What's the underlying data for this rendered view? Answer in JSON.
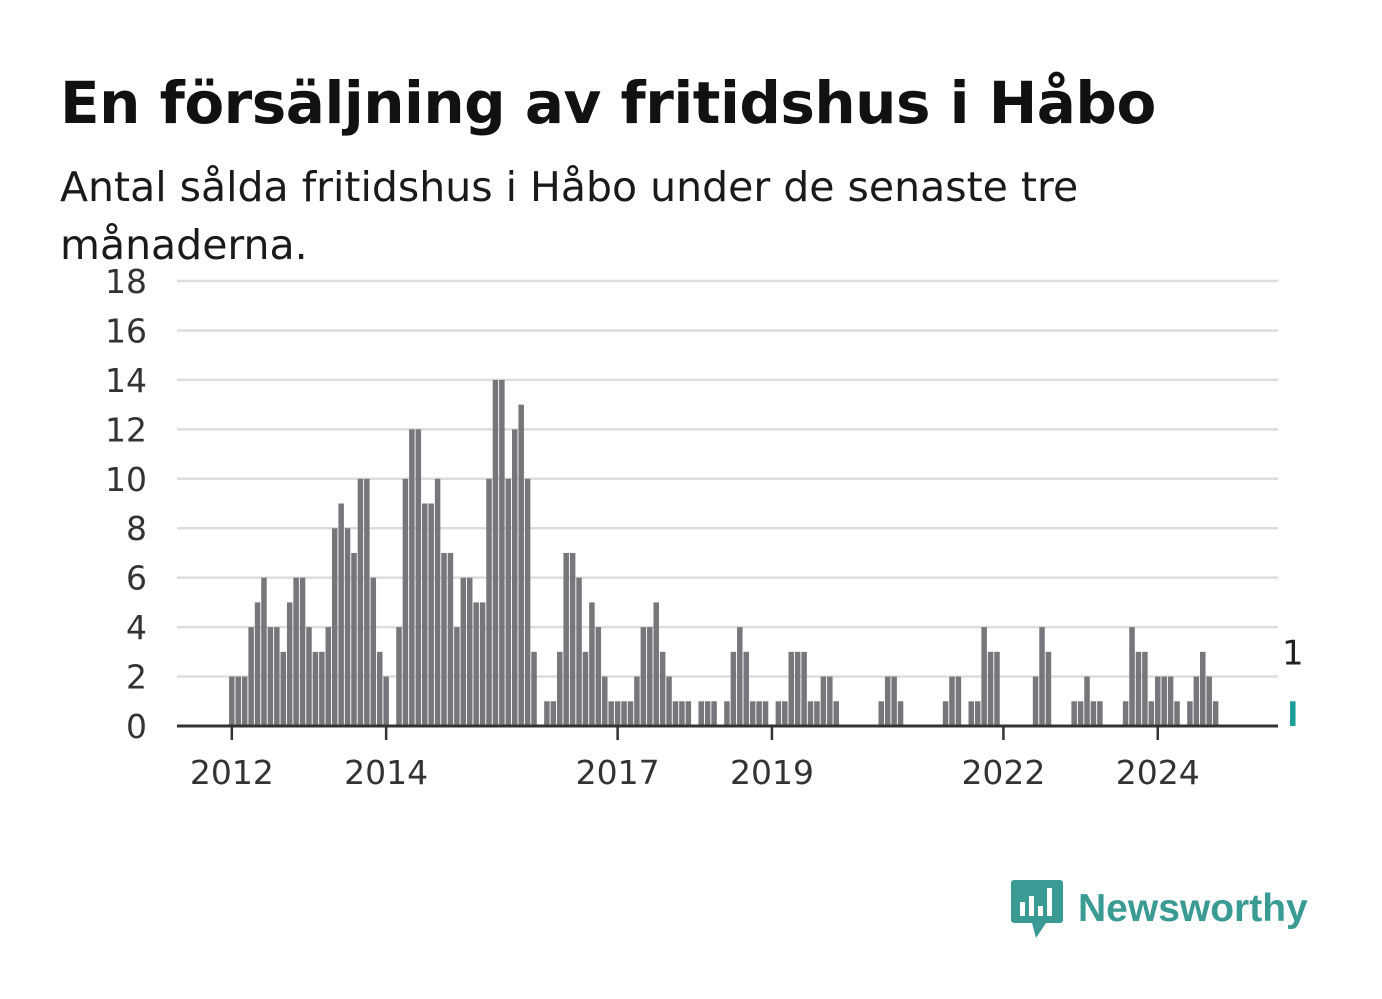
{
  "header": {
    "title": "En försäljning av fritidshus i Håbo",
    "subtitle": "Antal sålda fritidshus i Håbo under de senaste tre månaderna."
  },
  "brand": {
    "name": "Newsworthy",
    "icon": "bar-chart-speech-bubble-icon",
    "color": "#3a9a94"
  },
  "colors": {
    "bar": "#77767b",
    "highlight": "#1a9e96",
    "grid": "#dddddd",
    "axis": "#333333"
  },
  "chart_data": {
    "type": "bar",
    "ylim": [
      0,
      18
    ],
    "yticks": [
      0,
      2,
      4,
      6,
      8,
      10,
      12,
      14,
      16,
      18
    ],
    "xticks": [
      "2012",
      "2014",
      "2017",
      "2019",
      "2022",
      "2024"
    ],
    "grid": true,
    "highlight_label": "1",
    "categories": [
      "2011-07",
      "2011-08",
      "2011-09",
      "2011-10",
      "2011-11",
      "2011-12",
      "2012-01",
      "2012-02",
      "2012-03",
      "2012-04",
      "2012-05",
      "2012-06",
      "2012-07",
      "2012-08",
      "2012-09",
      "2012-10",
      "2012-11",
      "2012-12",
      "2013-01",
      "2013-02",
      "2013-03",
      "2013-04",
      "2013-05",
      "2013-06",
      "2013-07",
      "2013-08",
      "2013-09",
      "2013-10",
      "2013-11",
      "2013-12",
      "2014-01",
      "2014-02",
      "2014-03",
      "2014-04",
      "2014-05",
      "2014-06",
      "2014-07",
      "2014-08",
      "2014-09",
      "2014-10",
      "2014-11",
      "2014-12",
      "2015-01",
      "2015-02",
      "2015-03",
      "2015-04",
      "2015-05",
      "2015-06",
      "2015-07",
      "2015-08",
      "2015-09",
      "2015-10",
      "2015-11",
      "2015-12",
      "2016-01",
      "2016-02",
      "2016-03",
      "2016-04",
      "2016-05",
      "2016-06",
      "2016-07",
      "2016-08",
      "2016-09",
      "2016-10",
      "2016-11",
      "2016-12",
      "2017-01",
      "2017-02",
      "2017-03",
      "2017-04",
      "2017-05",
      "2017-06",
      "2017-07",
      "2017-08",
      "2017-09",
      "2017-10",
      "2017-11",
      "2017-12",
      "2018-01",
      "2018-02",
      "2018-03",
      "2018-04",
      "2018-05",
      "2018-06",
      "2018-07",
      "2018-08",
      "2018-09",
      "2018-10",
      "2018-11",
      "2018-12",
      "2019-01",
      "2019-02",
      "2019-03",
      "2019-04",
      "2019-05",
      "2019-06",
      "2019-07",
      "2019-08",
      "2019-09",
      "2019-10",
      "2019-11",
      "2019-12",
      "2020-01",
      "2020-02",
      "2020-03",
      "2020-04",
      "2020-05",
      "2020-06",
      "2020-07",
      "2020-08",
      "2020-09",
      "2020-10",
      "2020-11",
      "2020-12",
      "2021-01",
      "2021-02",
      "2021-03",
      "2021-04",
      "2021-05",
      "2021-06",
      "2021-07",
      "2021-08",
      "2021-09",
      "2021-10",
      "2021-11",
      "2021-12",
      "2022-01",
      "2022-02",
      "2022-03",
      "2022-04",
      "2022-05",
      "2022-06",
      "2022-07",
      "2022-08",
      "2022-09",
      "2022-10",
      "2022-11",
      "2022-12",
      "2023-01",
      "2023-02",
      "2023-03",
      "2023-04",
      "2023-05",
      "2023-06",
      "2023-07",
      "2023-08",
      "2023-09",
      "2023-10",
      "2023-11",
      "2023-12",
      "2024-01",
      "2024-02",
      "2024-03",
      "2024-04",
      "2024-05",
      "2024-06",
      "2024-07",
      "2024-08",
      "2024-09",
      "2024-10",
      "2024-11",
      "2024-12",
      "2025-01",
      "2025-02",
      "2025-03",
      "2025-04",
      "2025-05",
      "2025-06",
      "2025-07",
      "2025-08",
      "2025-09",
      "2025-10"
    ],
    "values": [
      0,
      0,
      0,
      0,
      0,
      0,
      2,
      2,
      2,
      4,
      5,
      6,
      4,
      4,
      3,
      5,
      6,
      6,
      4,
      3,
      3,
      4,
      8,
      9,
      8,
      7,
      10,
      10,
      6,
      3,
      2,
      0,
      4,
      10,
      12,
      12,
      9,
      9,
      10,
      7,
      7,
      4,
      6,
      6,
      5,
      5,
      10,
      14,
      14,
      10,
      12,
      13,
      10,
      3,
      0,
      1,
      1,
      3,
      7,
      7,
      6,
      3,
      5,
      4,
      2,
      1,
      1,
      1,
      1,
      2,
      4,
      4,
      5,
      3,
      2,
      1,
      1,
      1,
      0,
      1,
      1,
      1,
      0,
      1,
      3,
      4,
      3,
      1,
      1,
      1,
      0,
      1,
      1,
      3,
      3,
      3,
      1,
      1,
      2,
      2,
      1,
      0,
      0,
      0,
      0,
      0,
      0,
      1,
      2,
      2,
      1,
      0,
      0,
      0,
      0,
      0,
      0,
      1,
      2,
      2,
      0,
      1,
      1,
      4,
      3,
      3,
      0,
      0,
      0,
      0,
      0,
      2,
      4,
      3,
      0,
      0,
      0,
      1,
      1,
      2,
      1,
      1,
      0,
      0,
      0,
      1,
      4,
      3,
      3,
      1,
      2,
      2,
      2,
      1,
      0,
      1,
      2,
      3,
      2,
      1,
      0,
      0,
      0,
      0,
      0,
      0,
      0,
      0,
      0,
      0,
      0,
      1
    ]
  }
}
